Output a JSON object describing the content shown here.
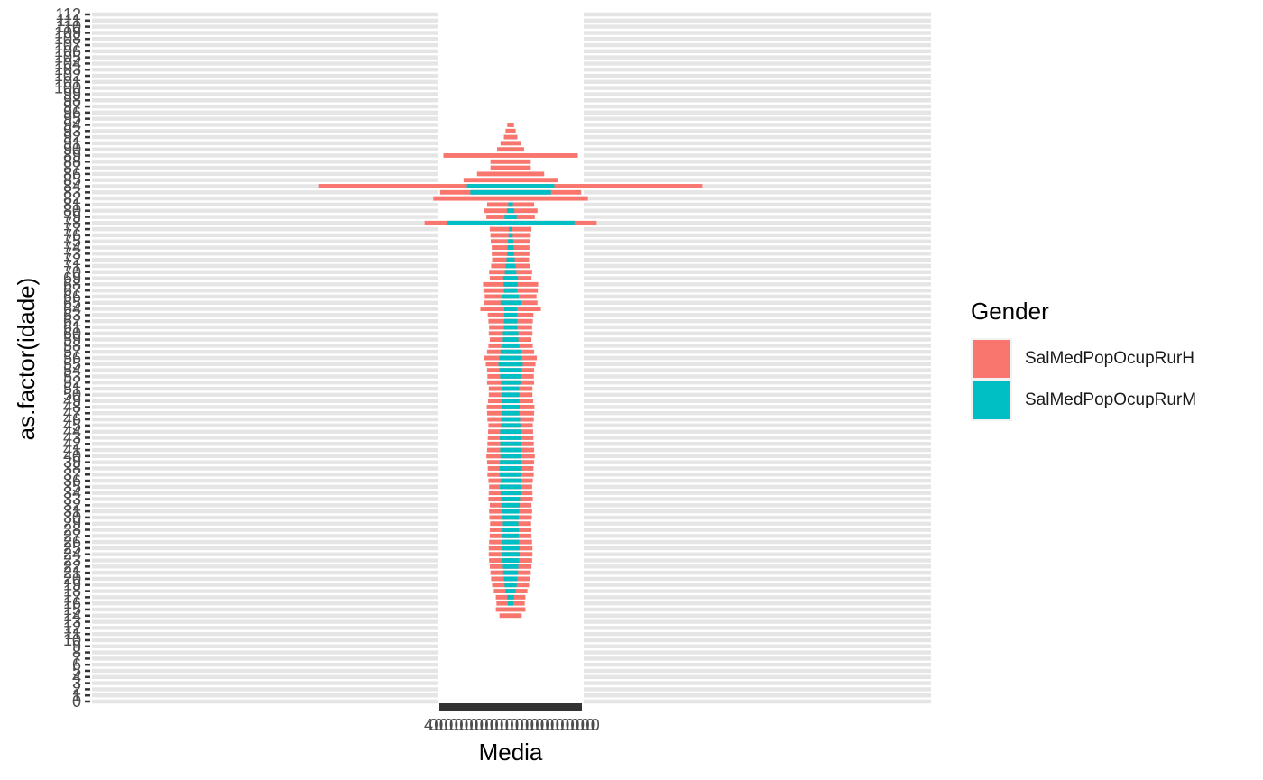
{
  "chart_data": {
    "type": "bar",
    "orientation": "horizontal",
    "layout": "population-pyramid (bars centred on x = 0)",
    "xlabel": "Media",
    "ylabel": "as.factor(idade)",
    "legend": {
      "title": "Gender",
      "placement": "right",
      "entries": [
        "SalMedPopOcupRurH",
        "SalMedPopOcupRurM"
      ]
    },
    "colors": {
      "SalMedPopOcupRurH": "#F8766D",
      "SalMedPopOcupRurM": "#00BFC4"
    },
    "grid": "horizontal major lines only",
    "categories": [
      0,
      1,
      2,
      3,
      4,
      5,
      6,
      7,
      8,
      9,
      10,
      11,
      12,
      13,
      14,
      15,
      16,
      17,
      18,
      19,
      20,
      21,
      22,
      23,
      24,
      25,
      26,
      27,
      28,
      29,
      30,
      31,
      32,
      33,
      34,
      35,
      36,
      37,
      38,
      39,
      40,
      41,
      42,
      43,
      44,
      45,
      46,
      47,
      48,
      49,
      50,
      51,
      52,
      53,
      54,
      55,
      56,
      57,
      58,
      59,
      60,
      61,
      62,
      63,
      64,
      65,
      66,
      67,
      68,
      69,
      70,
      71,
      72,
      73,
      74,
      75,
      76,
      77,
      78,
      79,
      80,
      81,
      82,
      83,
      84,
      85,
      86,
      87,
      88,
      89,
      90,
      91,
      92,
      93,
      94,
      95,
      96,
      97,
      98,
      99,
      100,
      101,
      102,
      103,
      104,
      105,
      106,
      107,
      108,
      109,
      110,
      111,
      112
    ],
    "y_tick_label_top": "112",
    "y_tick_label_bottom": "0",
    "x_tick_labels_overlapping": "4",
    "series": [
      {
        "name": "SalMedPopOcupRurH",
        "values": [
          0,
          0,
          0,
          0,
          0,
          0,
          0,
          0,
          0,
          0,
          0,
          0,
          0,
          0,
          330,
          440,
          420,
          440,
          500,
          550,
          580,
          600,
          620,
          640,
          650,
          650,
          640,
          620,
          620,
          610,
          630,
          640,
          620,
          660,
          650,
          640,
          660,
          690,
          680,
          700,
          720,
          700,
          690,
          680,
          670,
          660,
          690,
          700,
          710,
          670,
          650,
          650,
          700,
          690,
          700,
          740,
          780,
          700,
          660,
          620,
          650,
          640,
          660,
          680,
          900,
          800,
          770,
          810,
          820,
          620,
          640,
          580,
          550,
          560,
          560,
          590,
          600,
          620,
          2560,
          720,
          800,
          700,
          2300,
          2100,
          5700,
          1400,
          1000,
          600,
          600,
          2000,
          400,
          300,
          200,
          150,
          100,
          0,
          0,
          0,
          0,
          0,
          0,
          0,
          0,
          0,
          0,
          0,
          0,
          0,
          0,
          0,
          0,
          0,
          0
        ]
      },
      {
        "name": "SalMedPopOcupRurM",
        "values": [
          0,
          0,
          0,
          0,
          0,
          0,
          0,
          0,
          0,
          0,
          0,
          0,
          0,
          0,
          0,
          0,
          80,
          100,
          150,
          180,
          200,
          220,
          230,
          250,
          270,
          260,
          250,
          240,
          240,
          230,
          240,
          250,
          270,
          280,
          300,
          320,
          300,
          320,
          330,
          320,
          300,
          310,
          310,
          320,
          310,
          290,
          280,
          260,
          270,
          260,
          260,
          250,
          290,
          310,
          330,
          360,
          330,
          300,
          260,
          230,
          230,
          200,
          200,
          190,
          190,
          300,
          240,
          200,
          210,
          220,
          170,
          150,
          120,
          100,
          90,
          80,
          60,
          50,
          1900,
          180,
          110,
          70,
          0,
          1200,
          1300,
          0,
          0,
          0,
          0,
          0,
          0,
          0,
          0,
          0,
          0,
          0,
          0,
          0,
          0,
          0,
          0,
          0,
          0,
          0,
          0,
          0,
          0,
          0,
          0,
          0,
          0,
          0,
          0
        ]
      }
    ]
  }
}
